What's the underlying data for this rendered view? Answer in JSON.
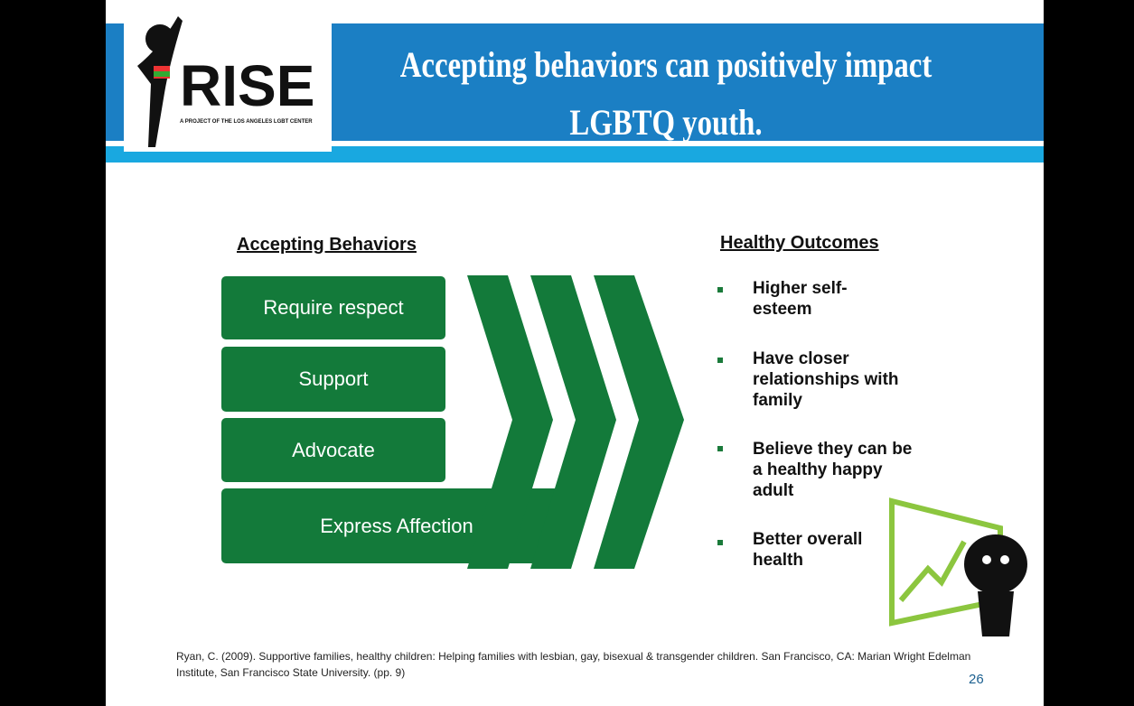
{
  "header": {
    "logo_text": "RISE",
    "logo_subtext": "A PROJECT OF THE LOS ANGELES LGBT CENTER",
    "title": "Accepting behaviors can positively impact LGBTQ youth."
  },
  "left": {
    "heading": "Accepting Behaviors",
    "items": [
      "Require respect",
      "Support",
      "Advocate",
      "Express Affection"
    ]
  },
  "right": {
    "heading": "Healthy Outcomes",
    "items": [
      "Higher self-esteem",
      "Have closer relationships with family",
      "Believe they can be a healthy happy adult",
      "Better overall health"
    ]
  },
  "footer": {
    "citation": "Ryan, C. (2009). Supportive families, healthy children: Helping families with lesbian, gay, bisexual & transgender children. San Francisco, CA: Marian Wright Edelman Institute, San Francisco State University. (pp. 9)",
    "page_number": "26"
  }
}
